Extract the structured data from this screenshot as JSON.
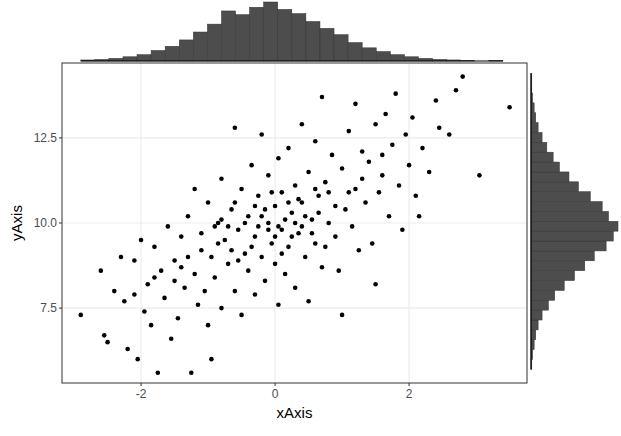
{
  "chart_data": [
    {
      "type": "scatter",
      "xlabel": "xAxis",
      "ylabel": "yAxis",
      "color": "#000000",
      "grid": true,
      "xlim": [
        -3.18,
        3.76
      ],
      "ylim": [
        5.3,
        14.7
      ],
      "xticks": [
        -2,
        0,
        2
      ],
      "yticks": [
        7.5,
        {
          "value": 10,
          "label": "10.0"
        },
        12.5
      ],
      "x": [
        -2.9,
        -2.6,
        -2.55,
        -2.5,
        -2.4,
        -2.3,
        -2.25,
        -2.2,
        -2.1,
        -2.05,
        -2.0,
        -1.95,
        -1.9,
        -1.85,
        -1.8,
        -1.75,
        -1.7,
        -1.65,
        -1.6,
        -1.55,
        -1.5,
        -1.45,
        -1.4,
        -1.35,
        -1.3,
        -1.25,
        -1.2,
        -1.2,
        -1.15,
        -1.1,
        -1.05,
        -1.0,
        -1.0,
        -0.95,
        -0.95,
        -0.9,
        -0.85,
        -0.8,
        -0.8,
        -0.75,
        -0.7,
        -0.65,
        -0.6,
        -0.6,
        -0.55,
        -0.5,
        -0.5,
        -0.45,
        -0.4,
        -0.4,
        -0.35,
        -0.3,
        -0.3,
        -0.25,
        -0.2,
        -0.2,
        -0.15,
        -0.1,
        -0.1,
        -0.05,
        0.0,
        0.0,
        0.05,
        0.05,
        0.1,
        0.1,
        0.15,
        0.2,
        0.2,
        0.25,
        0.3,
        0.3,
        0.35,
        0.4,
        0.4,
        0.45,
        0.5,
        0.5,
        0.55,
        0.6,
        0.6,
        0.65,
        0.7,
        0.7,
        0.75,
        0.8,
        0.85,
        0.9,
        0.95,
        1.0,
        1.0,
        1.05,
        1.1,
        1.15,
        1.2,
        1.2,
        1.25,
        1.3,
        1.35,
        1.4,
        1.45,
        1.5,
        1.5,
        1.55,
        1.6,
        1.65,
        1.7,
        1.75,
        1.8,
        1.85,
        1.9,
        1.95,
        2.0,
        2.05,
        2.1,
        2.15,
        2.2,
        2.3,
        2.4,
        2.45,
        2.6,
        2.7,
        2.8,
        3.05,
        3.5,
        -0.7,
        -0.6,
        -0.45,
        -0.35,
        -0.25,
        -0.15,
        -0.05,
        0.05,
        0.15,
        0.25,
        0.35,
        0.45,
        0.55,
        0.65,
        -0.85,
        -0.65,
        -0.3,
        0.0,
        0.2,
        0.4,
        -1.3,
        -1.1,
        -0.9,
        0.8,
        0.9,
        1.1,
        -1.5,
        -1.8,
        -2.1,
        1.3,
        0.6,
        -0.2,
        0.1,
        -0.55,
        0.3,
        -0.8,
        1.6,
        -1.4,
        0.75,
        -0.1
      ],
      "values": [
        7.3,
        8.6,
        6.7,
        6.5,
        8.0,
        9.0,
        7.7,
        6.3,
        8.9,
        6.0,
        9.5,
        7.4,
        8.2,
        7.0,
        9.3,
        5.6,
        8.6,
        7.8,
        9.9,
        6.6,
        8.9,
        7.2,
        9.6,
        8.1,
        10.2,
        5.6,
        11.0,
        8.5,
        7.6,
        9.2,
        8.0,
        10.6,
        7.0,
        6.0,
        9.0,
        8.4,
        10.0,
        11.3,
        7.5,
        9.5,
        8.8,
        10.4,
        12.8,
        8.0,
        9.8,
        11.0,
        7.3,
        9.1,
        10.2,
        8.6,
        11.7,
        9.6,
        7.9,
        10.8,
        12.6,
        9.0,
        8.3,
        10.0,
        11.4,
        9.4,
        8.8,
        10.5,
        7.6,
        11.9,
        9.8,
        10.9,
        8.5,
        12.2,
        9.3,
        10.3,
        11.1,
        8.1,
        9.7,
        12.9,
        10.6,
        9.0,
        11.5,
        7.7,
        10.1,
        12.4,
        9.4,
        10.8,
        13.7,
        8.7,
        11.2,
        10.0,
        12.0,
        9.6,
        8.6,
        11.6,
        7.3,
        10.4,
        12.7,
        9.9,
        13.5,
        11.0,
        9.2,
        12.1,
        10.6,
        11.8,
        9.4,
        8.2,
        12.9,
        10.9,
        11.4,
        13.2,
        10.2,
        12.3,
        13.8,
        11.1,
        9.8,
        12.6,
        11.7,
        13.1,
        10.8,
        10.2,
        12.2,
        11.5,
        13.6,
        12.8,
        12.6,
        13.9,
        14.3,
        11.4,
        13.4,
        9.9,
        10.6,
        10.0,
        9.3,
        9.9,
        10.4,
        10.9,
        9.9,
        10.1,
        9.6,
        10.7,
        10.2,
        9.7,
        10.3,
        9.4,
        9.2,
        10.5,
        9.6,
        10.6,
        9.9,
        9.0,
        9.7,
        9.9,
        10.9,
        10.5,
        10.9,
        8.3,
        8.4,
        7.9,
        11.3,
        11.0,
        10.2,
        9.1,
        8.9,
        10.0,
        10.1,
        12.0,
        8.7,
        9.3,
        9.8
      ]
    },
    {
      "type": "histogram",
      "color": "#4d4d4d",
      "tick_labels": false,
      "xlim": [
        -3.18,
        3.76
      ],
      "bins": [
        -2.9,
        -2.69,
        -2.48,
        -2.27,
        -2.06,
        -1.85,
        -1.64,
        -1.43,
        -1.22,
        -1.01,
        -0.8,
        -0.59,
        -0.38,
        -0.17,
        0.04,
        0.25,
        0.46,
        0.67,
        0.88,
        1.09,
        1.3,
        1.51,
        1.72,
        1.93,
        2.14,
        2.35,
        2.56,
        2.77,
        2.98,
        3.19,
        3.4
      ],
      "values": [
        2,
        3,
        5,
        8,
        12,
        20,
        28,
        40,
        55,
        70,
        95,
        88,
        102,
        112,
        98,
        90,
        75,
        62,
        50,
        35,
        25,
        18,
        12,
        8,
        5,
        3,
        2,
        1,
        0,
        1
      ]
    },
    {
      "type": "histogram",
      "orientation": "horizontal",
      "color": "#4d4d4d",
      "tick_labels": false,
      "ylim": [
        5.3,
        14.7
      ],
      "bins": [
        5.7,
        5.99,
        6.28,
        6.57,
        6.86,
        7.15,
        7.44,
        7.73,
        8.02,
        8.31,
        8.6,
        8.89,
        9.18,
        9.47,
        9.76,
        10.05,
        10.34,
        10.63,
        10.92,
        11.21,
        11.5,
        11.79,
        12.08,
        12.37,
        12.66,
        12.95,
        13.24,
        13.53,
        13.82,
        14.11,
        14.4
      ],
      "values": [
        1,
        2,
        4,
        6,
        9,
        14,
        22,
        30,
        42,
        55,
        68,
        80,
        95,
        104,
        110,
        98,
        90,
        75,
        60,
        48,
        36,
        28,
        20,
        14,
        9,
        6,
        4,
        2,
        1,
        1
      ]
    }
  ]
}
